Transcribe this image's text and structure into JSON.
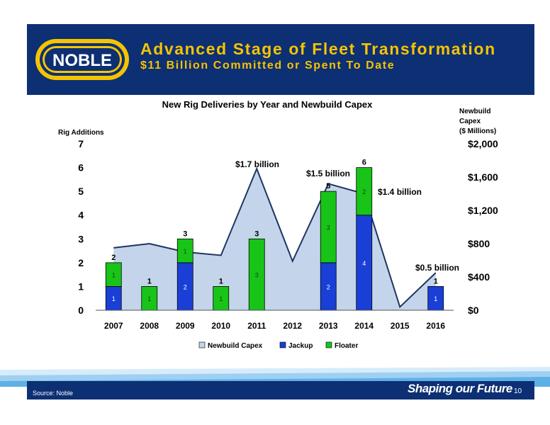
{
  "header": {
    "title": "Advanced Stage of Fleet Transformation",
    "subtitle": "$11 Billion Committed or Spent To Date",
    "logo_text": "NOBLE"
  },
  "footer": {
    "source": "Source: Noble",
    "tagline": "Shaping our Future",
    "page_number": "10"
  },
  "chart_data": {
    "type": "bar",
    "title": "New Rig Deliveries by Year and Newbuild Capex",
    "ylabel": "Rig Additions",
    "y2label_lines": [
      "Newbuild",
      "Capex",
      "($ Millions)"
    ],
    "categories": [
      "2007",
      "2008",
      "2009",
      "2010",
      "2011",
      "2012",
      "2013",
      "2014",
      "2015",
      "2016"
    ],
    "ylim": [
      0,
      7
    ],
    "y_ticks": [
      0,
      1,
      2,
      3,
      4,
      5,
      6,
      7
    ],
    "y2lim": [
      0,
      2000
    ],
    "y2_ticks": [
      0,
      400,
      800,
      1200,
      1600,
      2000
    ],
    "y2_tick_labels": [
      "$0",
      "$400",
      "$800",
      "$1,200",
      "$1,600",
      "$2,000"
    ],
    "series": [
      {
        "name": "Jackup",
        "type": "bar",
        "color": "#1a3fd6",
        "values": [
          1,
          0,
          2,
          0,
          0,
          0,
          2,
          4,
          0,
          1
        ]
      },
      {
        "name": "Floater",
        "type": "bar",
        "color": "#18c418",
        "values": [
          1,
          1,
          1,
          1,
          3,
          0,
          3,
          2,
          0,
          0
        ]
      },
      {
        "name": "Newbuild Capex",
        "type": "area",
        "color": "#c4d4ea",
        "axis": "right",
        "values": [
          750,
          800,
          700,
          660,
          1700,
          590,
          1520,
          1400,
          40,
          450
        ]
      }
    ],
    "bar_totals": [
      "2",
      "1",
      "3",
      "1",
      "3",
      "",
      "5",
      "6",
      "",
      "1"
    ],
    "annotations": [
      {
        "text": "$1.7 billion",
        "category": "2011"
      },
      {
        "text": "$1.5 billion",
        "category": "2013"
      },
      {
        "text": "$1.4 billion",
        "category": "2014"
      },
      {
        "text": "$0.5 billion",
        "category": "2016"
      }
    ],
    "legend_position": "bottom",
    "grid": false
  }
}
